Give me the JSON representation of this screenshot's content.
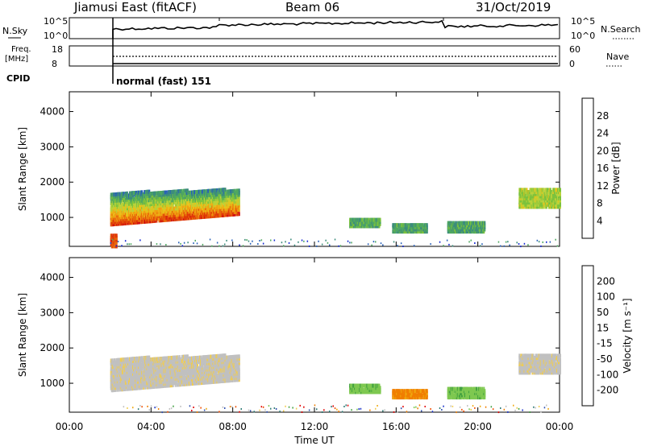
{
  "header": {
    "station": "Jiamusi East (fitACF)",
    "beam": "Beam 06",
    "date": "31/Oct/2019"
  },
  "status_panels": {
    "nsky_label": "N.Sky",
    "nsearch_label": "N.Search",
    "nsky_ticks": [
      "10^5",
      "10^0"
    ],
    "nsearch_ticks": [
      "10^5",
      "10^0"
    ],
    "freq_label_top": "Freq.",
    "freq_label_bottom": "[MHz]",
    "freq_ticks": [
      "18",
      "8"
    ],
    "nave_label": "Nave",
    "nave_ticks": [
      "60",
      "0"
    ],
    "cpid_label": "CPID",
    "cpid_text": "normal (fast) 151"
  },
  "colors": {
    "power_scale": [
      "#1428d0",
      "#2860b8",
      "#3c8c7c",
      "#4fa860",
      "#7cc23c",
      "#b8d23a",
      "#e8c21a",
      "#f0a010",
      "#e86a0a",
      "#e03a08",
      "#d01010"
    ],
    "velocity_scale": [
      "#e00000",
      "#f04c00",
      "#f07e00",
      "#f0aa10",
      "#f0cc50",
      "#c0c0c0",
      "#c0c0c0",
      "#7ec850",
      "#40a040",
      "#2e7a74",
      "#3050b0",
      "#1830c8"
    ]
  },
  "chart_data": [
    {
      "type": "heatmap",
      "name": "power",
      "xlabel": "",
      "ylabel": "Slant Range [km]",
      "xlim": [
        0,
        24
      ],
      "ylim": [
        180,
        4560
      ],
      "yticks": [
        1000,
        2000,
        3000,
        4000
      ],
      "colorbar": {
        "label": "Power [dB]",
        "ticks": [
          "4",
          "8",
          "12",
          "16",
          "20",
          "24",
          "28"
        ],
        "range": [
          0,
          30
        ]
      },
      "regions": [
        {
          "t0": 2.0,
          "t1": 8.3,
          "r0": 800,
          "r1": 1800,
          "value": 18
        },
        {
          "t0": 2.0,
          "t1": 2.3,
          "r0": 180,
          "r1": 500,
          "value": 25
        },
        {
          "t0": 13.7,
          "t1": 15.2,
          "r0": 750,
          "r1": 950,
          "value": 10
        },
        {
          "t0": 15.8,
          "t1": 17.5,
          "r0": 600,
          "r1": 800,
          "value": 9
        },
        {
          "t0": 18.5,
          "t1": 20.3,
          "r0": 600,
          "r1": 850,
          "value": 9
        },
        {
          "t0": 22.0,
          "t1": 24.0,
          "r0": 1300,
          "r1": 1800,
          "value": 14
        }
      ]
    },
    {
      "type": "heatmap",
      "name": "velocity",
      "xlabel": "Time UT",
      "ylabel": "Slant Range [km]",
      "xlim": [
        0,
        24
      ],
      "ylim": [
        180,
        4560
      ],
      "yticks": [
        1000,
        2000,
        3000,
        4000
      ],
      "xticks": [
        "00:00",
        "04:00",
        "08:00",
        "12:00",
        "16:00",
        "20:00",
        "00:00"
      ],
      "colorbar": {
        "label": "Velocity [m s⁻¹]",
        "ticks": [
          "-200",
          "-100",
          "-50",
          "-15",
          "15",
          "50",
          "100",
          "200"
        ]
      },
      "regions": [
        {
          "t0": 2.0,
          "t1": 8.3,
          "r0": 800,
          "r1": 1800,
          "value": 0
        },
        {
          "t0": 13.7,
          "t1": 15.2,
          "r0": 750,
          "r1": 950,
          "value": 40
        },
        {
          "t0": 15.8,
          "t1": 17.5,
          "r0": 600,
          "r1": 800,
          "value": -40
        },
        {
          "t0": 18.5,
          "t1": 20.3,
          "r0": 600,
          "r1": 850,
          "value": 40
        },
        {
          "t0": 22.0,
          "t1": 24.0,
          "r0": 1300,
          "r1": 1800,
          "value": 0
        }
      ]
    }
  ]
}
